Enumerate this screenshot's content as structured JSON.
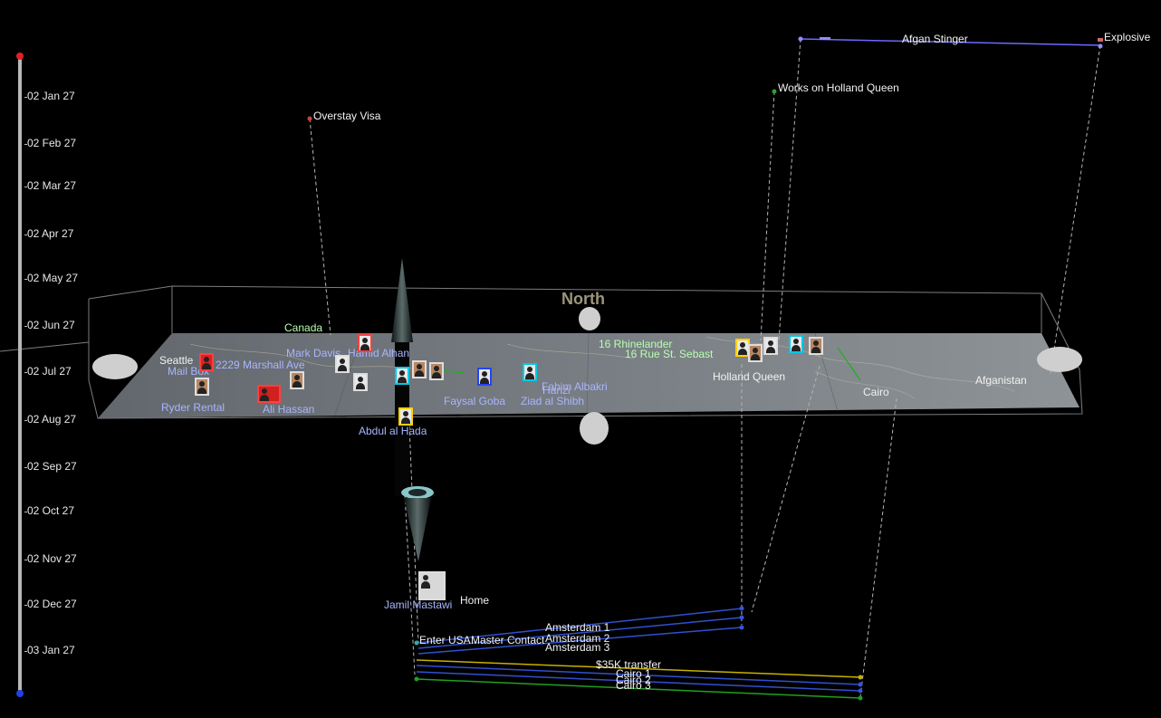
{
  "colors": {
    "background": "#000000",
    "timeline_top": "#e02020",
    "timeline_bottom": "#2040e0",
    "amsterdam_links": "#3050d0",
    "transfer_link": "#c8b000",
    "cairo_green": "#20a020",
    "stinger_link": "#6a6aff"
  },
  "timeline": {
    "ticks": [
      "02 Jan 27",
      "02 Feb 27",
      "02 Mar 27",
      "02 Apr 27",
      "02 May 27",
      "02 Jun 27",
      "02 Jul 27",
      "02 Aug 27",
      "02 Sep 27",
      "02 Oct 27",
      "02 Nov 27",
      "02 Dec 27",
      "03 Jan 27"
    ]
  },
  "map": {
    "compass": "North",
    "places": {
      "canada": "Canada",
      "seattle": "Seattle",
      "marshall": "2229 Marshall Ave",
      "cairo": "Cairo",
      "afganistan": "Afganistan",
      "rhineland": "16 Rhinelander",
      "rue": "16 Rue St. Sebast",
      "holland_queen": "Holland Queen"
    }
  },
  "events": {
    "overstay_visa": "Overstay Visa",
    "works_holland": "Works on Holland Queen",
    "afgan_stinger": "Afgan Stinger",
    "explosive": "Explosive",
    "amsterdam1": "Amsterdam 1",
    "amsterdam2": "Amsterdam 2",
    "amsterdam3": "Amsterdam 3",
    "transfer": "$35K transfer",
    "cairo1": "Cairo 1",
    "cairo2": "Cairo 2",
    "cairo3": "Cairo 3",
    "enter_usa": "Enter USA",
    "contact": "Master Contact",
    "home": "Home"
  },
  "people": {
    "mark_davis": "Mark Davis",
    "hamid": "Hamid Alhan",
    "mail_box": "Mail Box",
    "ryder": "Ryder Rental",
    "ali_hassan": "Ali Hassan",
    "abdul": "Abdul al Hada",
    "faysal": "Faysal Goba",
    "ziad": "Ziad al Shibh",
    "fahim": "Fahim Albakri",
    "jamil": "Jamil Mastawi",
    "hanzi": "Hanzi"
  }
}
